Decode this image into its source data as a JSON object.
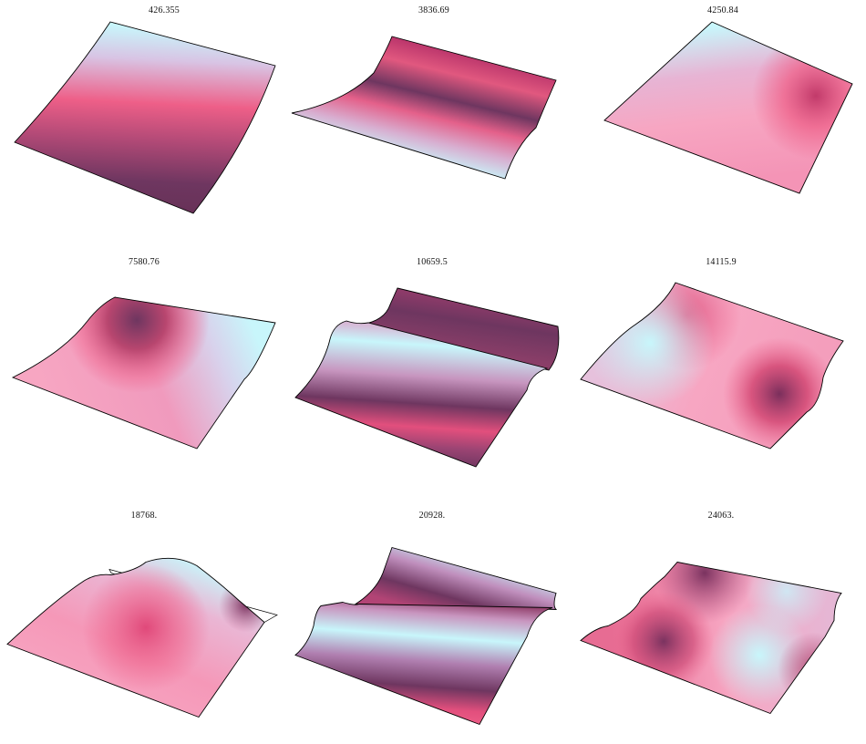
{
  "colors": {
    "dark": "#6e3660",
    "mid": "#ee5f88",
    "light": "#f7a6c2",
    "cyan": "#c8f6fb",
    "edge": "#000000"
  },
  "panels": [
    {
      "label": "426.355"
    },
    {
      "label": "3836.69"
    },
    {
      "label": "4250.84"
    },
    {
      "label": "7580.76"
    },
    {
      "label": "10659.5"
    },
    {
      "label": "14115.9"
    },
    {
      "label": "18768."
    },
    {
      "label": "20928."
    },
    {
      "label": "24063."
    }
  ]
}
